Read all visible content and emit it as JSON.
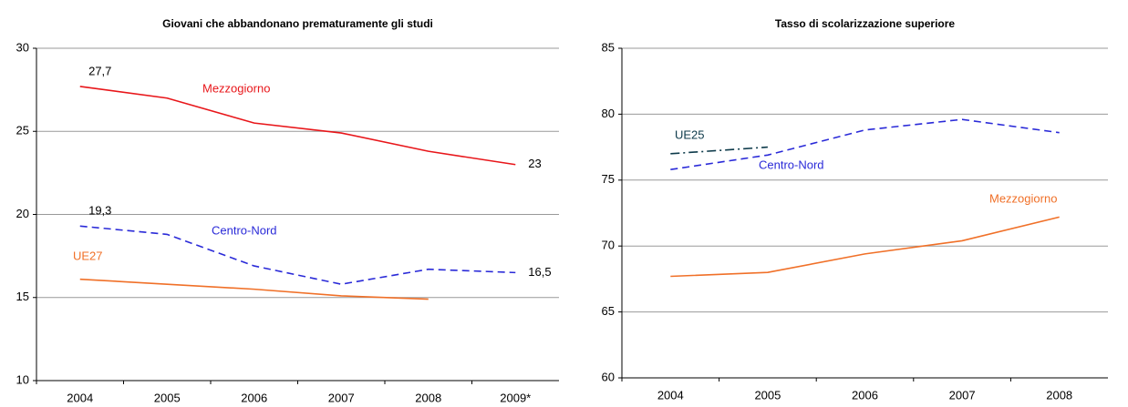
{
  "chart_data": [
    {
      "type": "line",
      "title": "Giovani che abbandonano prematuramente gli studi",
      "categories": [
        "2004",
        "2005",
        "2006",
        "2007",
        "2008",
        "2009*"
      ],
      "ylim": [
        10,
        30
      ],
      "yticks": [
        10,
        15,
        20,
        25,
        30
      ],
      "grid": true,
      "series": [
        {
          "name": "Mezzogiorno",
          "color": "#e8161a",
          "dash": "solid",
          "values": [
            27.7,
            27.0,
            25.5,
            24.9,
            23.8,
            23
          ],
          "value_labels": [
            "27,7",
            null,
            null,
            null,
            null,
            "23"
          ]
        },
        {
          "name": "Centro-Nord",
          "color": "#2a2ad8",
          "dash": "dashed",
          "values": [
            19.3,
            18.8,
            16.9,
            15.8,
            16.7,
            16.5
          ],
          "value_labels": [
            "19,3",
            null,
            null,
            null,
            null,
            "16,5"
          ]
        },
        {
          "name": "UE27",
          "color": "#f07028",
          "dash": "solid",
          "values": [
            16.1,
            15.8,
            15.5,
            15.1,
            14.9,
            null
          ]
        }
      ]
    },
    {
      "type": "line",
      "title": "Tasso di scolarizzazione superiore",
      "categories": [
        "2004",
        "2005",
        "2006",
        "2007",
        "2008"
      ],
      "ylim": [
        60,
        85
      ],
      "yticks": [
        60,
        65,
        70,
        75,
        80,
        85
      ],
      "grid": true,
      "series": [
        {
          "name": "UE25",
          "color": "#0d3a4a",
          "dash": "dashdot",
          "values": [
            77.0,
            77.5,
            null,
            null,
            null
          ]
        },
        {
          "name": "Centro-Nord",
          "color": "#2a2ad8",
          "dash": "dashed",
          "values": [
            75.8,
            76.9,
            78.8,
            79.6,
            78.6
          ]
        },
        {
          "name": "Mezzogiorno",
          "color": "#f07028",
          "dash": "solid",
          "values": [
            67.7,
            68.0,
            69.4,
            70.4,
            72.2
          ]
        }
      ]
    }
  ]
}
